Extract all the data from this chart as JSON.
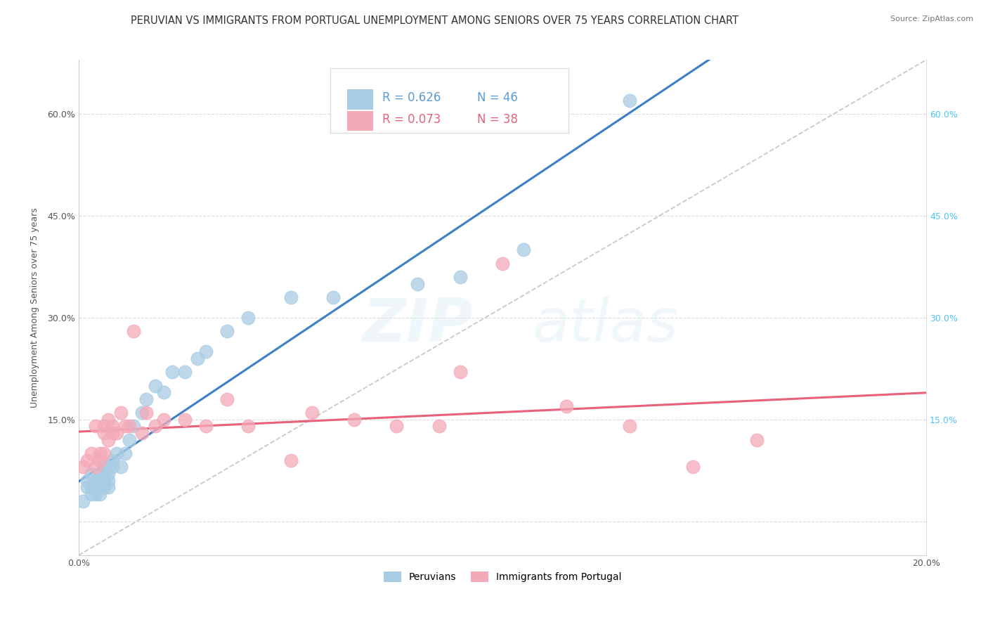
{
  "title": "PERUVIAN VS IMMIGRANTS FROM PORTUGAL UNEMPLOYMENT AMONG SENIORS OVER 75 YEARS CORRELATION CHART",
  "source": "Source: ZipAtlas.com",
  "ylabel": "Unemployment Among Seniors over 75 years",
  "watermark": "ZIPatlas",
  "xlim": [
    0.0,
    0.2
  ],
  "ylim": [
    -0.05,
    0.68
  ],
  "yticks": [
    0.0,
    0.15,
    0.3,
    0.45,
    0.6
  ],
  "ytick_labels_left": [
    "",
    "15.0%",
    "30.0%",
    "45.0%",
    "60.0%"
  ],
  "ytick_labels_right": [
    "",
    "15.0%",
    "30.0%",
    "45.0%",
    "60.0%"
  ],
  "xticks": [
    0.0,
    0.05,
    0.1,
    0.15,
    0.2
  ],
  "xtick_labels": [
    "0.0%",
    "",
    "",
    "",
    "20.0%"
  ],
  "peruvian_R": 0.626,
  "peruvian_N": 46,
  "portugal_R": 0.073,
  "portugal_N": 38,
  "peruvian_color": "#a8cce4",
  "portugal_color": "#f4a9b8",
  "peruvian_line_color": "#3b7fc4",
  "portugal_line_color": "#e8607a",
  "diag_line_color": "#bbbbbb",
  "title_fontsize": 10.5,
  "axis_fontsize": 9,
  "right_tick_color": "#4fc3f7",
  "peruvian_legend_color": "#5b9bd5",
  "portugal_legend_color": "#e8607a",
  "peruvian_x": [
    0.001,
    0.002,
    0.002,
    0.003,
    0.003,
    0.003,
    0.004,
    0.004,
    0.004,
    0.004,
    0.005,
    0.005,
    0.005,
    0.005,
    0.006,
    0.006,
    0.006,
    0.006,
    0.006,
    0.007,
    0.007,
    0.007,
    0.007,
    0.008,
    0.008,
    0.009,
    0.01,
    0.011,
    0.012,
    0.013,
    0.015,
    0.016,
    0.018,
    0.02,
    0.022,
    0.025,
    0.028,
    0.03,
    0.035,
    0.04,
    0.05,
    0.06,
    0.08,
    0.09,
    0.105,
    0.13
  ],
  "peruvian_y": [
    0.03,
    0.05,
    0.06,
    0.04,
    0.05,
    0.07,
    0.04,
    0.05,
    0.06,
    0.05,
    0.04,
    0.06,
    0.07,
    0.05,
    0.05,
    0.06,
    0.07,
    0.08,
    0.06,
    0.05,
    0.07,
    0.08,
    0.06,
    0.08,
    0.09,
    0.1,
    0.08,
    0.1,
    0.12,
    0.14,
    0.16,
    0.18,
    0.2,
    0.19,
    0.22,
    0.22,
    0.24,
    0.25,
    0.28,
    0.3,
    0.33,
    0.33,
    0.35,
    0.36,
    0.4,
    0.62
  ],
  "portugal_x": [
    0.001,
    0.002,
    0.003,
    0.004,
    0.004,
    0.005,
    0.005,
    0.006,
    0.006,
    0.006,
    0.007,
    0.007,
    0.008,
    0.008,
    0.009,
    0.01,
    0.011,
    0.012,
    0.013,
    0.015,
    0.016,
    0.018,
    0.02,
    0.025,
    0.03,
    0.035,
    0.04,
    0.05,
    0.055,
    0.065,
    0.075,
    0.085,
    0.09,
    0.1,
    0.115,
    0.13,
    0.145,
    0.16
  ],
  "portugal_y": [
    0.08,
    0.09,
    0.1,
    0.08,
    0.14,
    0.1,
    0.09,
    0.1,
    0.14,
    0.13,
    0.12,
    0.15,
    0.13,
    0.14,
    0.13,
    0.16,
    0.14,
    0.14,
    0.28,
    0.13,
    0.16,
    0.14,
    0.15,
    0.15,
    0.14,
    0.18,
    0.14,
    0.09,
    0.16,
    0.15,
    0.14,
    0.14,
    0.22,
    0.38,
    0.17,
    0.14,
    0.08,
    0.12
  ]
}
